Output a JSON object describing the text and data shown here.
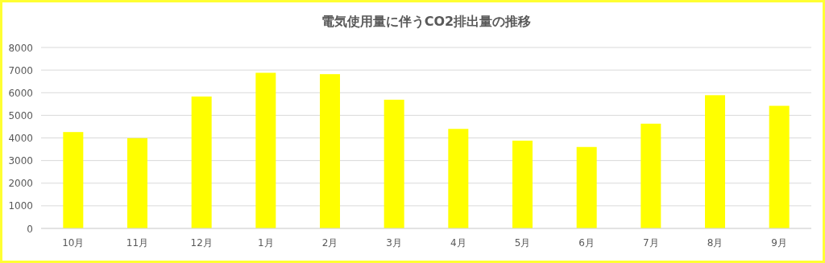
{
  "chart_data": {
    "type": "bar",
    "title": "電気使用量に伴うCO2排出量の推移",
    "categories": [
      "10月",
      "11月",
      "12月",
      "1月",
      "2月",
      "3月",
      "4月",
      "5月",
      "6月",
      "7月",
      "8月",
      "9月"
    ],
    "values": [
      4260,
      3990,
      5830,
      6880,
      6820,
      5690,
      4400,
      3880,
      3600,
      4630,
      5890,
      5420
    ],
    "color": "#ffff00",
    "ylim": [
      0,
      8000
    ],
    "yticks": [
      0,
      1000,
      2000,
      3000,
      4000,
      5000,
      6000,
      7000,
      8000
    ],
    "grid": "y"
  }
}
